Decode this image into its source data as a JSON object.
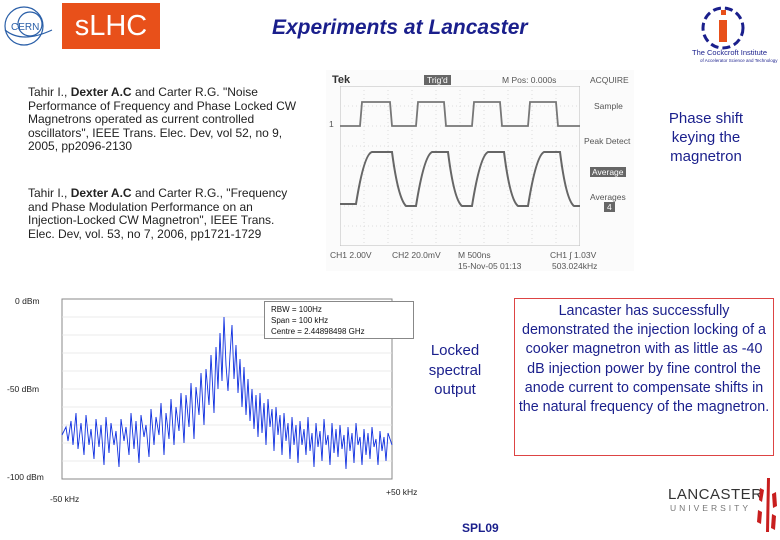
{
  "header": {
    "slhc_label": "sLHC",
    "title": "Experiments at Lancaster",
    "cern_logo_text": "CERN",
    "cockcroft_name": "The Cockcroft Institute",
    "cockcroft_sub": "of Accelerator Science and Technology"
  },
  "references": [
    {
      "authors_before": "Tahir I., ",
      "bold_author": "Dexter A.C",
      "authors_after": " and Carter R.G. \"Noise Performance of Frequency and Phase Locked CW Magnetrons operated as current controlled oscillators\", IEEE Trans. Elec. Dev, vol 52, no 9, 2005, pp2096-2130"
    },
    {
      "authors_before": "Tahir I., ",
      "bold_author": "Dexter A.C",
      "authors_after": " and Carter R.G., \"Frequency and Phase Modulation Performance on an Injection-Locked CW Magnetron\", IEEE Trans. Elec. Dev, vol. 53, no 7, 2006, pp1721-1729"
    }
  ],
  "oscilloscope": {
    "brand": "Tek",
    "trig_status": "Trig'd",
    "mpos": "M Pos: 0.000s",
    "mode": "ACQUIRE",
    "menu_sample": "Sample",
    "menu_peak": "Peak Detect",
    "menu_average": "Average",
    "menu_averages": "Averages",
    "averages_value": "4",
    "ch1_marker": "1",
    "ch1_scale": "CH1  2.00V",
    "ch2_scale": "CH2  20.0mV",
    "time_scale": "M 500ns",
    "date": "15-Nov-05 01:13",
    "trig_level": "CH1 ∫ 1.03V",
    "freq": "503.024kHz"
  },
  "phase_label": "Phase shift keying the magnetron",
  "spectrum": {
    "rbw": "RBW = 100Hz",
    "span": "Span = 100 kHz",
    "centre": "Centre = 2.44898498 GHz",
    "y_top": "0 dBm",
    "y_mid": "-50 dBm",
    "y_bottom": "-100 dBm",
    "x_left": "-50 kHz",
    "x_right": "+50 kHz"
  },
  "locked_label": "Locked spectral output",
  "summary": "Lancaster has successfully demonstrated the injection locking of a cooker magnetron with as little as -40 dB injection power by fine control the anode current to compensate shifts in the natural frequency of the magnetron.",
  "footer": {
    "university_top": "LANCASTER",
    "university_bottom": "UNIVERSITY",
    "code": "SPL09"
  },
  "colors": {
    "title_blue": "#1a1f8c",
    "slhc_orange": "#e8501a",
    "trace_blue": "#1030e0"
  }
}
